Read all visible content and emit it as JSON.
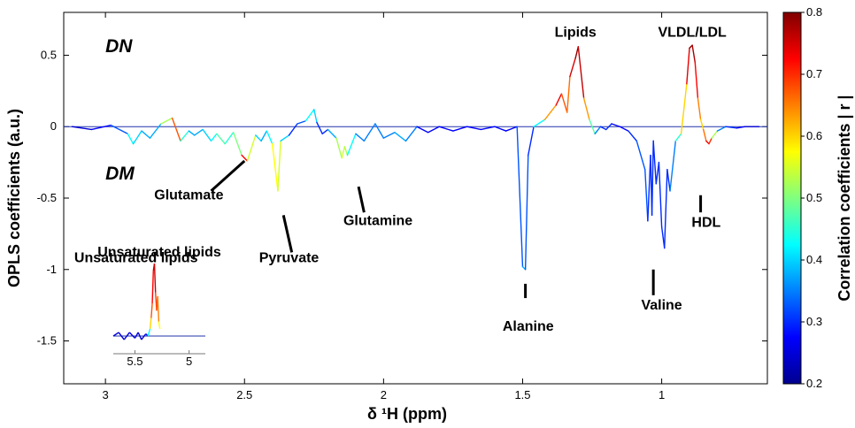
{
  "chart_data": {
    "type": "line",
    "xlabel": "δ ¹H (ppm)",
    "ylabel": "OPLS coefficients (a.u.)",
    "colorbar_label": "Correlation coefficients | r |",
    "xlim": [
      3.15,
      0.62
    ],
    "ylim": [
      -1.8,
      0.8
    ],
    "x_reversed": true,
    "x_ticks": [
      3,
      2.5,
      2,
      1.5,
      1
    ],
    "x_tick_labels": [
      "3",
      "2.5",
      "2",
      "1.5",
      "1"
    ],
    "y_ticks": [
      0.5,
      0,
      -0.5,
      -1,
      -1.5
    ],
    "y_tick_labels": [
      "0.5",
      "0",
      "-0.5",
      "-1",
      "-1.5"
    ],
    "colorbar": {
      "min": 0.2,
      "max": 0.8,
      "ticks": [
        0.8,
        0.7,
        0.6,
        0.5,
        0.4,
        0.3,
        0.2
      ],
      "tick_labels": [
        "0.8",
        "0.7",
        "0.6",
        "0.5",
        "0.4",
        "0.3",
        "0.2"
      ],
      "colormap": "jet"
    },
    "group_labels": [
      {
        "text": "DN",
        "x": 3.0,
        "y": 0.52
      },
      {
        "text": "DM",
        "x": 3.0,
        "y": -0.37
      }
    ],
    "annotations": [
      {
        "text": "Lipids",
        "x": 1.31,
        "y": 0.63
      },
      {
        "text": "VLDL/LDL",
        "x": 0.89,
        "y": 0.63
      },
      {
        "text": "Glutamate",
        "x": 2.7,
        "y": -0.51
      },
      {
        "text": "Pyruvate",
        "x": 2.34,
        "y": -0.95
      },
      {
        "text": "Glutamine",
        "x": 2.02,
        "y": -0.69
      },
      {
        "text": "Unsaturated lipids",
        "x": 2.89,
        "y": -0.95
      },
      {
        "text": "Alanine",
        "x": 1.48,
        "y": -1.43
      },
      {
        "text": "Valine",
        "x": 1.0,
        "y": -1.28
      },
      {
        "text": "HDL",
        "x": 0.84,
        "y": -0.7
      }
    ],
    "series": [
      {
        "x": [
          3.12,
          3.05,
          2.98,
          2.92,
          2.9,
          2.87,
          2.84,
          2.8,
          2.76,
          2.73,
          2.7,
          2.68,
          2.65,
          2.62,
          2.6,
          2.57,
          2.54,
          2.51,
          2.49,
          2.46,
          2.44,
          2.42,
          2.4,
          2.38,
          2.37,
          2.34,
          2.31,
          2.28,
          2.25,
          2.24,
          2.22,
          2.2,
          2.17,
          2.15,
          2.14,
          2.13,
          2.1,
          2.07,
          2.03,
          2.0,
          1.96,
          1.92,
          1.88,
          1.84,
          1.8,
          1.75,
          1.7,
          1.65,
          1.6,
          1.56,
          1.52,
          1.5,
          1.49,
          1.48,
          1.46,
          1.42,
          1.38,
          1.36,
          1.34,
          1.33,
          1.31,
          1.3,
          1.28,
          1.26,
          1.24,
          1.22,
          1.2,
          1.18,
          1.15,
          1.12,
          1.09,
          1.06,
          1.05,
          1.04,
          1.035,
          1.03,
          1.02,
          1.01,
          1.0,
          0.99,
          0.98,
          0.97,
          0.95,
          0.93,
          0.91,
          0.9,
          0.89,
          0.88,
          0.87,
          0.86,
          0.85,
          0.84,
          0.83,
          0.82,
          0.8,
          0.77,
          0.73,
          0.7,
          0.65
        ],
        "values": [
          0.0,
          -0.02,
          0.01,
          -0.05,
          -0.12,
          -0.03,
          -0.08,
          0.02,
          0.06,
          -0.1,
          -0.03,
          -0.06,
          -0.02,
          -0.1,
          -0.05,
          -0.12,
          -0.04,
          -0.2,
          -0.24,
          -0.06,
          -0.1,
          -0.03,
          -0.12,
          -0.45,
          -0.1,
          -0.06,
          0.02,
          0.04,
          0.12,
          0.03,
          -0.05,
          -0.02,
          -0.08,
          -0.22,
          -0.14,
          -0.2,
          -0.05,
          -0.1,
          0.02,
          -0.08,
          -0.04,
          -0.1,
          0.0,
          -0.04,
          0.0,
          -0.03,
          0.0,
          -0.02,
          0.0,
          -0.03,
          0.0,
          -0.98,
          -1.0,
          -0.2,
          0.0,
          0.05,
          0.15,
          0.23,
          0.1,
          0.35,
          0.48,
          0.56,
          0.2,
          0.05,
          -0.05,
          0.0,
          -0.02,
          0.02,
          0.0,
          -0.03,
          -0.1,
          -0.3,
          -0.66,
          -0.2,
          -0.62,
          -0.1,
          -0.4,
          -0.25,
          -0.7,
          -0.85,
          -0.3,
          -0.45,
          -0.1,
          -0.05,
          0.3,
          0.55,
          0.57,
          0.45,
          0.2,
          0.05,
          -0.02,
          -0.1,
          -0.12,
          -0.08,
          -0.03,
          0.0,
          -0.01,
          0.0,
          0.0
        ],
        "r": [
          0.25,
          0.25,
          0.3,
          0.35,
          0.5,
          0.3,
          0.45,
          0.3,
          0.75,
          0.6,
          0.3,
          0.45,
          0.3,
          0.5,
          0.35,
          0.6,
          0.3,
          0.7,
          0.75,
          0.35,
          0.45,
          0.3,
          0.55,
          0.6,
          0.5,
          0.3,
          0.3,
          0.35,
          0.5,
          0.3,
          0.3,
          0.3,
          0.45,
          0.6,
          0.5,
          0.55,
          0.3,
          0.4,
          0.3,
          0.4,
          0.3,
          0.45,
          0.25,
          0.3,
          0.25,
          0.3,
          0.25,
          0.3,
          0.25,
          0.3,
          0.25,
          0.4,
          0.35,
          0.3,
          0.3,
          0.55,
          0.72,
          0.75,
          0.6,
          0.72,
          0.78,
          0.8,
          0.72,
          0.55,
          0.4,
          0.3,
          0.3,
          0.3,
          0.25,
          0.3,
          0.3,
          0.35,
          0.3,
          0.3,
          0.3,
          0.3,
          0.3,
          0.3,
          0.3,
          0.3,
          0.3,
          0.3,
          0.4,
          0.5,
          0.7,
          0.78,
          0.8,
          0.75,
          0.7,
          0.6,
          0.6,
          0.72,
          0.75,
          0.65,
          0.4,
          0.3,
          0.3,
          0.25,
          0.25
        ]
      }
    ],
    "baseline": 0,
    "inset": {
      "title": "Unsaturated lipids",
      "x_ticks": [
        5.5,
        5
      ],
      "x_tick_labels": [
        "5.5",
        "5"
      ],
      "xlim": [
        5.7,
        4.85
      ],
      "x": [
        5.7,
        5.65,
        5.6,
        5.55,
        5.5,
        5.47,
        5.44,
        5.4,
        5.38,
        5.36,
        5.35,
        5.34,
        5.33,
        5.32,
        5.31,
        5.3,
        5.29,
        5.28,
        5.27
      ],
      "values": [
        0.0,
        0.05,
        -0.05,
        0.05,
        -0.03,
        0.05,
        -0.05,
        0.03,
        0.0,
        0.1,
        0.25,
        0.45,
        0.9,
        1.0,
        0.6,
        0.35,
        0.55,
        0.2,
        0.1
      ],
      "r": [
        0.25,
        0.25,
        0.25,
        0.25,
        0.25,
        0.25,
        0.25,
        0.25,
        0.3,
        0.55,
        0.65,
        0.7,
        0.75,
        0.78,
        0.72,
        0.65,
        0.7,
        0.6,
        0.55
      ]
    }
  }
}
